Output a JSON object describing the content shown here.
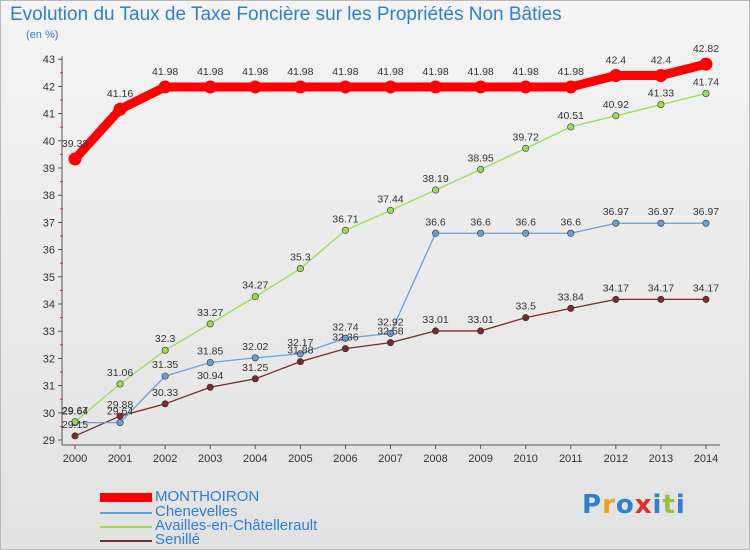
{
  "header": {
    "title": "Evolution du Taux de Taxe Foncière sur les Propriétés Non Bâties",
    "subtitle": "(en %)"
  },
  "logo": {
    "text": "Proxiti"
  },
  "chart_data": {
    "type": "line",
    "title": "Evolution du Taux de Taxe Foncière sur les Propriétés Non Bâties",
    "ylabel": "(en %)",
    "xlabel": "",
    "x": [
      "2000",
      "2001",
      "2002",
      "2003",
      "2004",
      "2005",
      "2006",
      "2007",
      "2008",
      "2009",
      "2010",
      "2011",
      "2012",
      "2013",
      "2014"
    ],
    "ylim": [
      29,
      43
    ],
    "yticks": [
      29,
      30,
      31,
      32,
      33,
      34,
      35,
      36,
      37,
      38,
      39,
      40,
      41,
      42,
      43
    ],
    "grid": false,
    "legend": "bottom-left",
    "series": [
      {
        "name": "MONTHOIRON",
        "color": "#ff0000",
        "values": [
          39.33,
          41.16,
          41.98,
          41.98,
          41.98,
          41.98,
          41.98,
          41.98,
          41.98,
          41.98,
          41.98,
          41.98,
          42.4,
          42.4,
          42.82
        ],
        "labels": [
          "39.33",
          "41.16",
          "41.98",
          "41.98",
          "41.98",
          "41.98",
          "41.98",
          "41.98",
          "41.98",
          "41.98",
          "41.98",
          "41.98",
          "42.4",
          "42.4",
          "42.82"
        ]
      },
      {
        "name": "Chenevelles",
        "color": "#6a9fd8",
        "values": [
          29.64,
          29.64,
          31.35,
          31.85,
          32.02,
          32.17,
          32.74,
          32.92,
          36.6,
          36.6,
          36.6,
          36.6,
          36.97,
          36.97,
          36.97
        ],
        "labels": [
          "29.64",
          "29.64",
          "31.35",
          "31.85",
          "32.02",
          "32.17",
          "32.74",
          "32.92",
          "36.6",
          "36.6",
          "36.6",
          "36.6",
          "36.97",
          "36.97",
          "36.97"
        ]
      },
      {
        "name": "Availles-en-Châtellerault",
        "color": "#99dd55",
        "values": [
          29.67,
          31.06,
          32.3,
          33.27,
          34.27,
          35.3,
          36.71,
          37.44,
          38.19,
          38.95,
          39.72,
          40.51,
          40.92,
          41.33,
          41.74
        ],
        "labels": [
          "29.67",
          "31.06",
          "32.3",
          "33.27",
          "34.27",
          "35.3",
          "36.71",
          "37.44",
          "38.19",
          "38.95",
          "39.72",
          "40.51",
          "40.92",
          "41.33",
          "41.74"
        ]
      },
      {
        "name": "Senillé",
        "color": "#7a2a2a",
        "values": [
          29.15,
          29.88,
          30.33,
          30.94,
          31.25,
          31.88,
          32.36,
          32.58,
          33.01,
          33.01,
          33.5,
          33.84,
          34.17,
          34.17,
          34.17
        ],
        "labels": [
          "29.15",
          "29.88",
          "30.33",
          "30.94",
          "31.25",
          "31.88",
          "32.36",
          "32.58",
          "33.01",
          "33.01",
          "33.5",
          "33.84",
          "34.17",
          "34.17",
          "34.17"
        ]
      }
    ]
  }
}
